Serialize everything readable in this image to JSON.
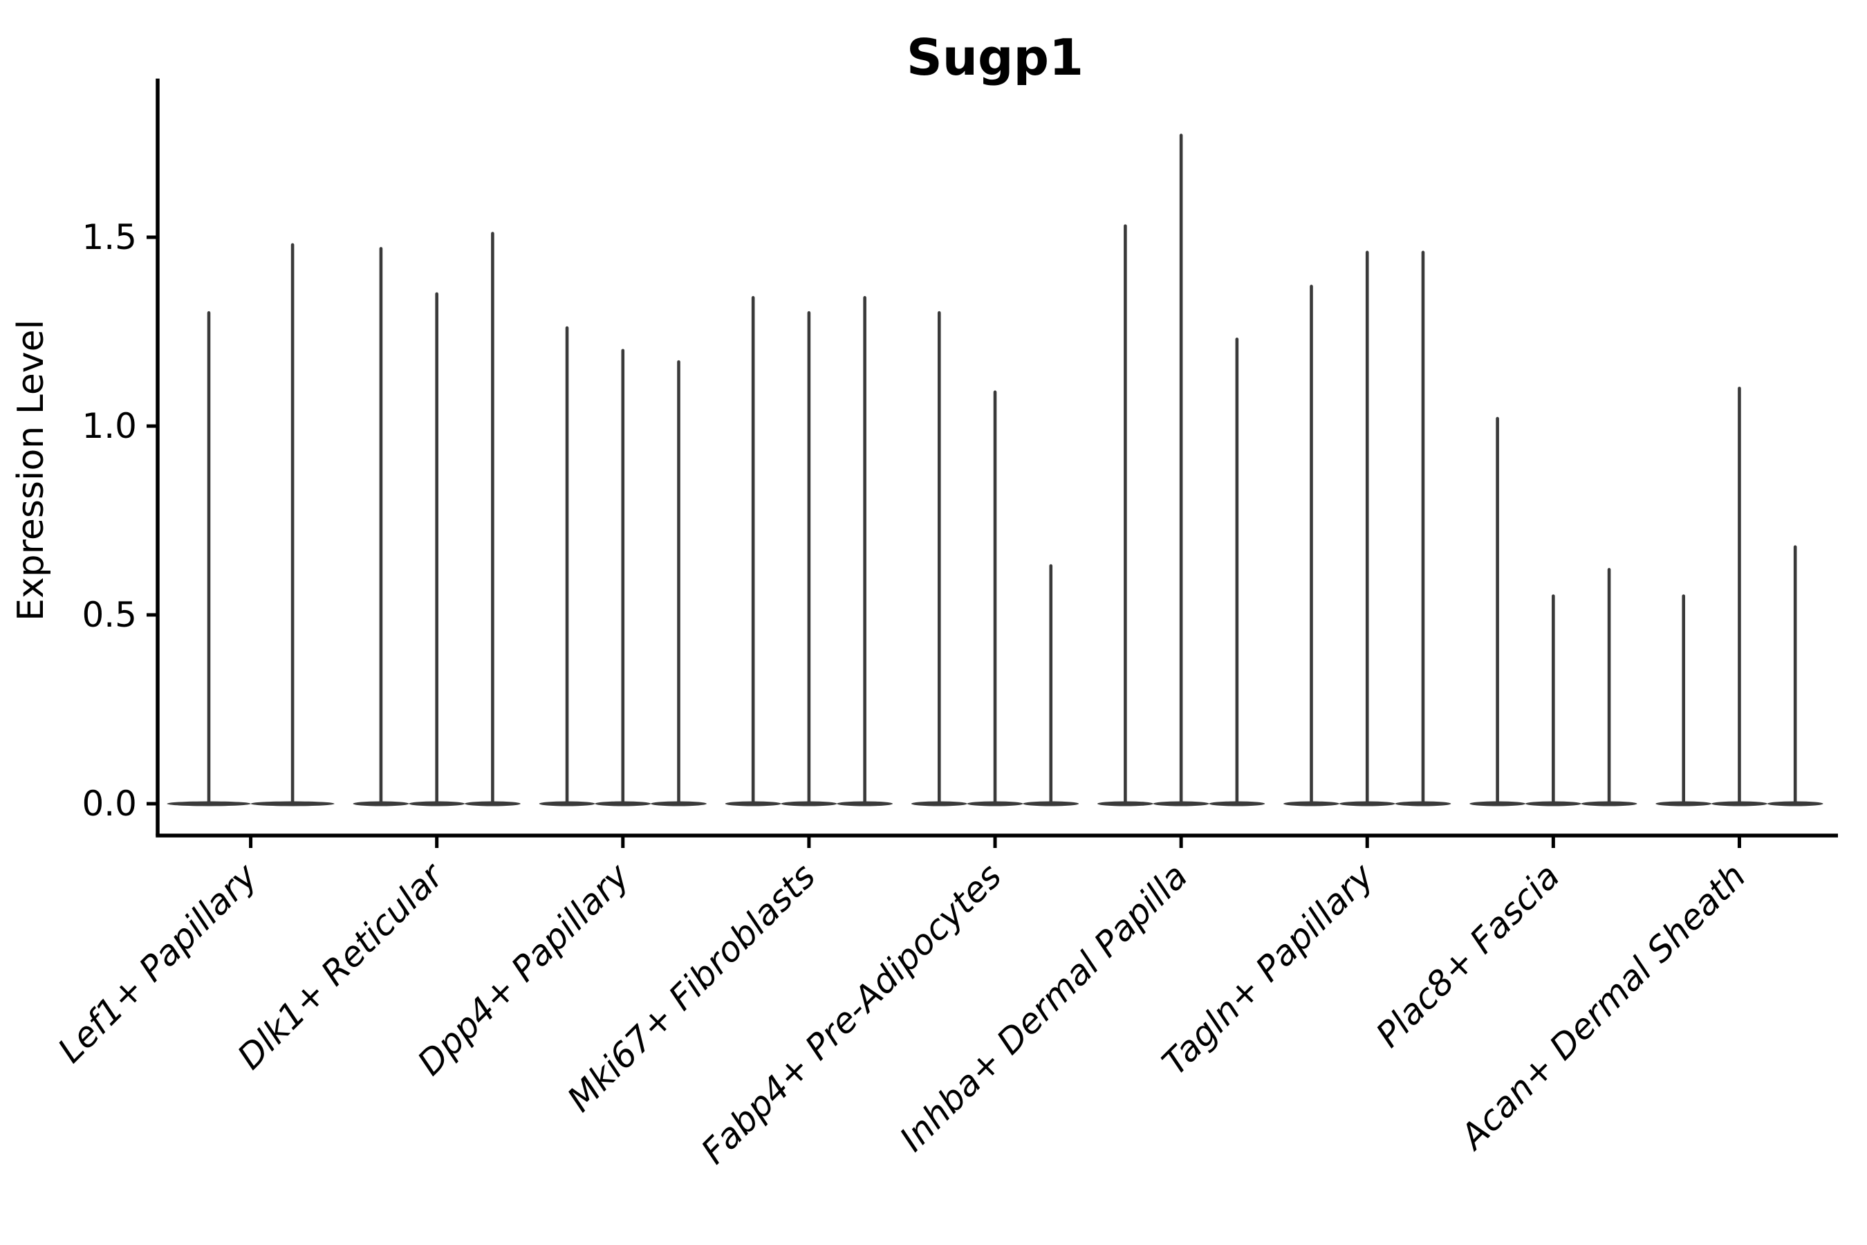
{
  "chart_data": {
    "type": "violin",
    "title": "Sugp1",
    "xlabel": "",
    "ylabel": "Expression Level",
    "ylim": [
      0,
      1.92
    ],
    "yticks": [
      "0.0",
      "0.5",
      "1.0",
      "1.5"
    ],
    "ytick_values": [
      0.0,
      0.5,
      1.0,
      1.5
    ],
    "grid": "off",
    "legend": "none",
    "categories": [
      "Lef1+ Papillary",
      "Dlk1+ Reticular",
      "Dpp4+ Papillary",
      "Mki67+ Fibroblasts",
      "Fabp4+ Pre-Adipocytes",
      "Inhba+ Dermal Papilla",
      "Tagln+ Papillary",
      "Plac8+ Fascia",
      "Acan+ Dermal Sheath"
    ],
    "series_note": "Each category holds thin needle-shaped violins: expression bulk at 0 with a narrow tail up to the listed maximum expression level.",
    "violin_max_values": [
      [
        1.3,
        1.48
      ],
      [
        1.47,
        1.35,
        1.51
      ],
      [
        1.26,
        1.2,
        1.17
      ],
      [
        1.34,
        1.3,
        1.34
      ],
      [
        1.3,
        1.09,
        0.63
      ],
      [
        1.53,
        1.77,
        1.23
      ],
      [
        1.37,
        1.46,
        1.46
      ],
      [
        1.02,
        0.55,
        0.62
      ],
      [
        0.55,
        1.1,
        0.68
      ]
    ],
    "colors": {
      "violin": "#3a3a3a",
      "axis": "#000000",
      "background": "#ffffff"
    }
  }
}
